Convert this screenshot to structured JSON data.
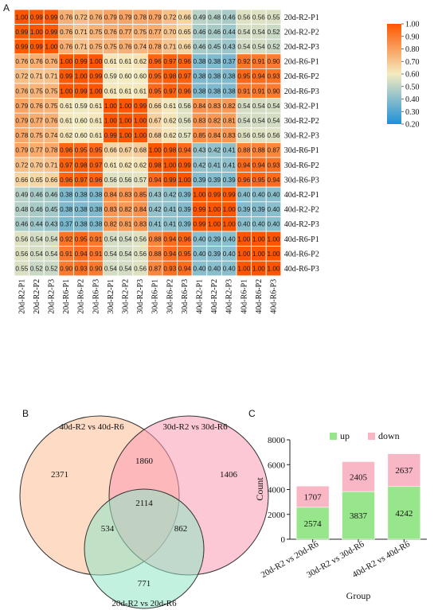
{
  "panels": {
    "a": "A",
    "b": "B",
    "c": "C"
  },
  "chart_data": [
    {
      "type": "heatmap",
      "rows": [
        "20d-R2-P1",
        "20d-R2-P2",
        "20d-R2-P3",
        "20d-R6-P1",
        "20d-R6-P2",
        "20d-R6-P3",
        "30d-R2-P1",
        "30d-R2-P2",
        "30d-R2-P3",
        "30d-R6-P1",
        "30d-R6-P2",
        "30d-R6-P3",
        "40d-R2-P1",
        "40d-R2-P2",
        "40d-R2-P3",
        "40d-R6-P1",
        "40d-R6-P2",
        "40d-R6-P3"
      ],
      "columns": [
        "20d-R2-P1",
        "20d-R2-P2",
        "20d-R2-P3",
        "20d-R6-P1",
        "20d-R6-P2",
        "20d-R6-P3",
        "30d-R2-P1",
        "30d-R2-P2",
        "30d-R2-P3",
        "30d-R6-P1",
        "30d-R6-P2",
        "30d-R6-P3",
        "40d-R2-P1",
        "40d-R2-P2",
        "40d-R2-P3",
        "40d-R6-P1",
        "40d-R6-P2",
        "40d-R6-P3"
      ],
      "values": [
        [
          1.0,
          0.99,
          0.99,
          0.76,
          0.72,
          0.76,
          0.79,
          0.79,
          0.78,
          0.79,
          0.72,
          0.66,
          0.49,
          0.48,
          0.46,
          0.56,
          0.56,
          0.55
        ],
        [
          0.99,
          1.0,
          0.99,
          0.76,
          0.71,
          0.75,
          0.76,
          0.77,
          0.75,
          0.77,
          0.7,
          0.65,
          0.46,
          0.46,
          0.44,
          0.54,
          0.54,
          0.52
        ],
        [
          0.99,
          0.99,
          1.0,
          0.76,
          0.71,
          0.75,
          0.75,
          0.76,
          0.74,
          0.78,
          0.71,
          0.66,
          0.46,
          0.45,
          0.43,
          0.54,
          0.54,
          0.52
        ],
        [
          0.76,
          0.76,
          0.76,
          1.0,
          0.99,
          1.0,
          0.61,
          0.61,
          0.62,
          0.96,
          0.97,
          0.96,
          0.38,
          0.38,
          0.37,
          0.92,
          0.91,
          0.9
        ],
        [
          0.72,
          0.71,
          0.71,
          0.99,
          1.0,
          0.99,
          0.59,
          0.6,
          0.6,
          0.95,
          0.98,
          0.97,
          0.38,
          0.38,
          0.38,
          0.95,
          0.94,
          0.93
        ],
        [
          0.76,
          0.75,
          0.75,
          1.0,
          0.99,
          1.0,
          0.61,
          0.61,
          0.61,
          0.95,
          0.97,
          0.96,
          0.38,
          0.38,
          0.38,
          0.91,
          0.91,
          0.9
        ],
        [
          0.79,
          0.76,
          0.75,
          0.61,
          0.59,
          0.61,
          1.0,
          1.0,
          0.99,
          0.66,
          0.61,
          0.56,
          0.84,
          0.83,
          0.82,
          0.54,
          0.54,
          0.54
        ],
        [
          0.79,
          0.77,
          0.76,
          0.61,
          0.6,
          0.61,
          1.0,
          1.0,
          1.0,
          0.67,
          0.62,
          0.56,
          0.83,
          0.82,
          0.81,
          0.54,
          0.54,
          0.54
        ],
        [
          0.78,
          0.75,
          0.74,
          0.62,
          0.6,
          0.61,
          0.99,
          1.0,
          1.0,
          0.68,
          0.62,
          0.57,
          0.85,
          0.84,
          0.83,
          0.56,
          0.56,
          0.56
        ],
        [
          0.79,
          0.77,
          0.78,
          0.96,
          0.95,
          0.95,
          0.66,
          0.67,
          0.68,
          1.0,
          0.98,
          0.94,
          0.43,
          0.42,
          0.41,
          0.88,
          0.88,
          0.87
        ],
        [
          0.72,
          0.7,
          0.71,
          0.97,
          0.98,
          0.97,
          0.61,
          0.62,
          0.62,
          0.98,
          1.0,
          0.99,
          0.42,
          0.41,
          0.41,
          0.94,
          0.94,
          0.93
        ],
        [
          0.66,
          0.65,
          0.66,
          0.96,
          0.97,
          0.96,
          0.56,
          0.56,
          0.57,
          0.94,
          0.99,
          1.0,
          0.39,
          0.39,
          0.39,
          0.96,
          0.95,
          0.94
        ],
        [
          0.49,
          0.46,
          0.46,
          0.38,
          0.38,
          0.38,
          0.84,
          0.83,
          0.85,
          0.43,
          0.42,
          0.39,
          1.0,
          0.99,
          0.99,
          0.4,
          0.4,
          0.4
        ],
        [
          0.48,
          0.46,
          0.45,
          0.38,
          0.38,
          0.38,
          0.83,
          0.82,
          0.84,
          0.42,
          0.41,
          0.39,
          0.99,
          1.0,
          1.0,
          0.39,
          0.39,
          0.4
        ],
        [
          0.46,
          0.44,
          0.43,
          0.37,
          0.38,
          0.38,
          0.82,
          0.81,
          0.83,
          0.41,
          0.41,
          0.39,
          0.99,
          1.0,
          1.0,
          0.4,
          0.4,
          0.4
        ],
        [
          0.56,
          0.54,
          0.54,
          0.92,
          0.95,
          0.91,
          0.54,
          0.54,
          0.56,
          0.88,
          0.94,
          0.96,
          0.4,
          0.39,
          0.4,
          1.0,
          1.0,
          1.0
        ],
        [
          0.56,
          0.54,
          0.54,
          0.91,
          0.94,
          0.91,
          0.54,
          0.54,
          0.56,
          0.88,
          0.94,
          0.95,
          0.4,
          0.39,
          0.4,
          1.0,
          1.0,
          1.0
        ],
        [
          0.55,
          0.52,
          0.52,
          0.9,
          0.93,
          0.9,
          0.54,
          0.54,
          0.56,
          0.87,
          0.93,
          0.94,
          0.4,
          0.4,
          0.4,
          1.0,
          1.0,
          1.0
        ]
      ],
      "colorbar": {
        "ticks": [
          "1.00",
          "0.90",
          "0.80",
          "0.70",
          "0.60",
          "0.50",
          "0.40",
          "0.30",
          "0.20"
        ],
        "range": [
          0.2,
          1.0
        ],
        "colors": [
          "#1e90d8",
          "#f4ebc0",
          "#fe5600"
        ]
      }
    },
    {
      "type": "venn",
      "sets": [
        "40d-R2 vs 40d-R6",
        "30d-R2 vs 30d-R6",
        "20d-R2 vs 20d-R6"
      ],
      "colors": [
        "#fbbd95",
        "#fb9ab3",
        "#8fe6c6"
      ],
      "regions": {
        "only_40d": "2371",
        "only_30d": "1406",
        "only_20d": "771",
        "40d_30d": "1860",
        "40d_20d": "534",
        "30d_20d": "862",
        "all": "2114"
      }
    },
    {
      "type": "bar",
      "stacked": true,
      "categories": [
        "20d-R2 vs 20d-R6",
        "30d-R2 vs 30d-R6",
        "40d-R2 vs 40d-R6"
      ],
      "series": [
        {
          "name": "up",
          "values": [
            2574,
            3837,
            4242
          ],
          "labels": [
            "2574",
            "3837",
            "4242"
          ],
          "color": "#98e68b"
        },
        {
          "name": "down",
          "values": [
            1707,
            2405,
            2637
          ],
          "labels": [
            "1707",
            "2405",
            "2637"
          ],
          "color": "#f9b6c4"
        }
      ],
      "xlabel": "Group",
      "ylabel": "Count",
      "ylim": [
        0,
        8000
      ],
      "yticks": [
        "0",
        "2000",
        "4000",
        "6000",
        "8000"
      ],
      "legend": "top"
    }
  ]
}
